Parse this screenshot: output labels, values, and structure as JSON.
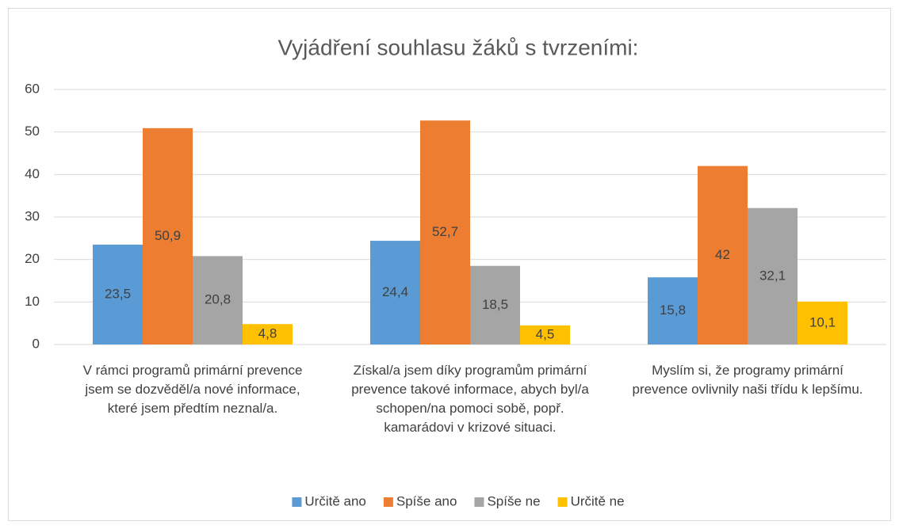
{
  "chart_data": {
    "type": "bar",
    "title": "Vyjádření souhlasu žáků s tvrzeními:",
    "categories": [
      "V rámci programů primární prevence jsem se dozvěděl/a nové informace, které jsem předtím neznal/a.",
      "Získal/a jsem díky programům primární prevence takové informace, abych byl/a schopen/na pomoci sobě, popř. kamarádovi v krizové situaci.",
      "Myslím si, že programy primární prevence ovlivnily naši třídu k lepšímu."
    ],
    "series": [
      {
        "name": "Určitě ano",
        "color": "#5b9bd5",
        "values": [
          23.5,
          24.4,
          15.8
        ],
        "value_labels": [
          "23,5",
          "24,4",
          "15,8"
        ]
      },
      {
        "name": "Spíše ano",
        "color": "#ed7d31",
        "values": [
          50.9,
          52.7,
          42
        ],
        "value_labels": [
          "50,9",
          "52,7",
          "42"
        ]
      },
      {
        "name": "Spíše ne",
        "color": "#a5a5a5",
        "values": [
          20.8,
          18.5,
          32.1
        ],
        "value_labels": [
          "20,8",
          "18,5",
          "32,1"
        ]
      },
      {
        "name": "Určitě ne",
        "color": "#ffc000",
        "values": [
          4.8,
          4.5,
          10.1
        ],
        "value_labels": [
          "4,8",
          "4,5",
          "10,1"
        ]
      }
    ],
    "ylim": [
      0,
      60
    ],
    "yticks": [
      0,
      10,
      20,
      30,
      40,
      50,
      60
    ],
    "grid": true,
    "legend": "bottom"
  }
}
